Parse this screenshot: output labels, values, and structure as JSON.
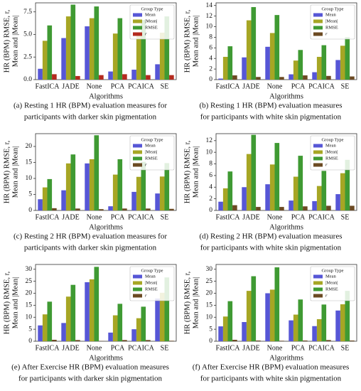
{
  "chart_data": [
    {
      "type": "bar",
      "caption": [
        "(a) Resting 1 HR (BPM) evaluation measures for",
        "participants with darker skin pigmentation"
      ],
      "y_label": [
        "HR (BPM) RMSE, r,",
        "Mean and |Mean|"
      ],
      "x_label": "Algorithms",
      "legend_title": "Group Type",
      "legend": "upper right",
      "categories": [
        "FastICA",
        "JADE",
        "None",
        "PCA",
        "PCAICA",
        "SE"
      ],
      "ylim": [
        0,
        8.5
      ],
      "yticks": [
        {
          "value": 0,
          "label": "0.0"
        },
        {
          "value": 2.5,
          "label": "2.5"
        },
        {
          "value": 5,
          "label": "5.0"
        },
        {
          "value": 7.5,
          "label": "7.5"
        }
      ],
      "series": [
        {
          "name": "Mean",
          "color": "#5656d6",
          "values": [
            1.2,
            4.6,
            5.9,
            0.9,
            1.1,
            1.7
          ]
        },
        {
          "name": "|Mean|",
          "color": "#a6a624",
          "values": [
            4.3,
            7.0,
            6.8,
            5.1,
            4.9,
            5.2
          ]
        },
        {
          "name": "RMSE",
          "color": "#3f9a33",
          "values": [
            6.0,
            8.3,
            8.1,
            6.8,
            6.6,
            7.0
          ]
        },
        {
          "name": "r",
          "color": "#b42a1e",
          "values": [
            0.6,
            0.4,
            0.5,
            0.6,
            0.5,
            0.5
          ]
        }
      ]
    },
    {
      "type": "bar",
      "caption": [
        "(b) Resting 1 HR (BPM) evaluation measures",
        "for participants with white skin pigmentation"
      ],
      "y_label": [
        "HR (BPM) RMSE, r,",
        "Mean and |Mean|"
      ],
      "x_label": "Algorithms",
      "legend_title": "Group Type",
      "legend": "upper right",
      "categories": [
        "FastICA",
        "JADE",
        "None",
        "PCA",
        "PCAICA",
        "SE"
      ],
      "ylim": [
        0,
        14.5
      ],
      "yticks": [
        0,
        2,
        4,
        6,
        8,
        10,
        12,
        14
      ],
      "series": [
        {
          "name": "Mean",
          "color": "#5656d6",
          "values": [
            0.2,
            4.2,
            6.2,
            1.0,
            1.4,
            3.7
          ]
        },
        {
          "name": "|Mean|",
          "color": "#a6a624",
          "values": [
            4.3,
            11.2,
            8.8,
            3.6,
            4.3,
            6.4
          ]
        },
        {
          "name": "RMSE",
          "color": "#3f9a33",
          "values": [
            6.3,
            13.7,
            12.2,
            5.6,
            6.5,
            8.0
          ]
        },
        {
          "name": "r",
          "color": "#6b4a22",
          "values": [
            0.8,
            0.5,
            0.5,
            0.8,
            0.7,
            0.6
          ]
        }
      ]
    },
    {
      "type": "bar",
      "caption": [
        "(c) Resting 2 HR (BPM) evaluation measures for",
        "participants with darker skin pigmentation"
      ],
      "y_label": [
        "HR (BPM) RMSE, r,",
        "Mean and |Mean|"
      ],
      "x_label": "Algorithms",
      "legend_title": "Group Type",
      "legend": "upper right",
      "categories": [
        "FastICA",
        "JADE",
        "None",
        "PCA",
        "PCAICA",
        "SE"
      ],
      "ylim": [
        0,
        24
      ],
      "yticks": [
        0,
        5,
        10,
        15,
        20
      ],
      "series": [
        {
          "name": "Mean",
          "color": "#5656d6",
          "values": [
            3.5,
            6.3,
            14.7,
            1.3,
            5.8,
            5.3
          ]
        },
        {
          "name": "|Mean|",
          "color": "#a6a624",
          "values": [
            7.2,
            14.7,
            16.0,
            11.2,
            10.5,
            10.6
          ]
        },
        {
          "name": "RMSE",
          "color": "#3f9a33",
          "values": [
            9.8,
            17.5,
            23.5,
            16.0,
            15.2,
            14.8
          ]
        },
        {
          "name": "r",
          "color": "#6b4a22",
          "values": [
            0.7,
            0.6,
            0.4,
            0.6,
            0.6,
            0.5
          ]
        }
      ]
    },
    {
      "type": "bar",
      "caption": [
        "(d) Resting 2 HR (BPM) evaluation measures",
        "for participants with white skin pigmentation"
      ],
      "y_label": [
        "HR (BPM) RMSE, r,",
        "Mean and |Mean|"
      ],
      "x_label": "Algorithms",
      "legend_title": "Group Type",
      "legend": "upper right",
      "categories": [
        "FastICA",
        "JADE",
        "None",
        "PCA",
        "PCAICA",
        "SE"
      ],
      "ylim": [
        0,
        13.2
      ],
      "yticks": [
        0,
        2,
        4,
        6,
        8,
        10,
        12
      ],
      "series": [
        {
          "name": "Mean",
          "color": "#5656d6",
          "values": [
            1.5,
            4.0,
            4.5,
            1.7,
            1.6,
            2.8
          ]
        },
        {
          "name": "|Mean|",
          "color": "#a6a624",
          "values": [
            3.8,
            9.7,
            7.9,
            5.8,
            4.2,
            6.4
          ]
        },
        {
          "name": "RMSE",
          "color": "#3f9a33",
          "values": [
            6.7,
            13.0,
            11.6,
            9.4,
            6.8,
            8.7
          ]
        },
        {
          "name": "r",
          "color": "#6b4a22",
          "values": [
            0.9,
            0.6,
            0.6,
            0.7,
            0.8,
            0.8
          ]
        }
      ]
    },
    {
      "type": "bar",
      "caption": [
        "(e) After Exercise HR (BPM) evaluation measures",
        "for participants with darker skin pigmentation"
      ],
      "y_label": [
        "HR (BPM) RMSE, r,",
        "Mean and |Mean|"
      ],
      "x_label": "Algorithms",
      "legend_title": "Group Type",
      "legend": "upper right",
      "categories": [
        "FastICA",
        "JADE",
        "None",
        "PCA",
        "PCAICA",
        "SE"
      ],
      "ylim": [
        0,
        32
      ],
      "yticks": [
        0,
        5,
        10,
        15,
        20,
        25,
        30
      ],
      "series": [
        {
          "name": "Mean",
          "color": "#5656d6",
          "values": [
            6.6,
            7.6,
            24.6,
            3.6,
            5.0,
            17.8
          ]
        },
        {
          "name": "|Mean|",
          "color": "#a6a624",
          "values": [
            11.2,
            18.6,
            25.8,
            10.8,
            9.6,
            20.2
          ]
        },
        {
          "name": "RMSE",
          "color": "#3f9a33",
          "values": [
            16.5,
            23.5,
            31.0,
            15.6,
            14.4,
            26.6
          ]
        },
        {
          "name": "r",
          "color": "#6b4a22",
          "values": [
            0.6,
            0.5,
            0.1,
            0.5,
            0.5,
            0.2
          ]
        }
      ]
    },
    {
      "type": "bar",
      "caption": [
        "(f) After Exercise HR (BPM) evaluation measures",
        "for participants with white skin pigmentation"
      ],
      "y_label": [
        "HR (BPM) RMSE, r,",
        "Mean and |Mean|"
      ],
      "x_label": "Algorithms",
      "legend_title": "Group Type",
      "legend": "upper right",
      "categories": [
        "FastICA",
        "JADE",
        "None",
        "PCA",
        "PCAICA",
        "SE"
      ],
      "ylim": [
        0,
        32
      ],
      "yticks": [
        0,
        5,
        10,
        15,
        20,
        25,
        30
      ],
      "series": [
        {
          "name": "Mean",
          "color": "#5656d6",
          "values": [
            6.2,
            8.0,
            20.0,
            8.7,
            6.3,
            12.8
          ]
        },
        {
          "name": "|Mean|",
          "color": "#a6a624",
          "values": [
            10.3,
            21.0,
            21.5,
            11.1,
            9.2,
            15.4
          ]
        },
        {
          "name": "RMSE",
          "color": "#3f9a33",
          "values": [
            16.7,
            27.1,
            30.8,
            17.4,
            15.3,
            21.0
          ]
        },
        {
          "name": "r",
          "color": "#6b4a22",
          "values": [
            0.6,
            0.3,
            0.2,
            0.3,
            0.5,
            0.3
          ]
        }
      ]
    }
  ]
}
